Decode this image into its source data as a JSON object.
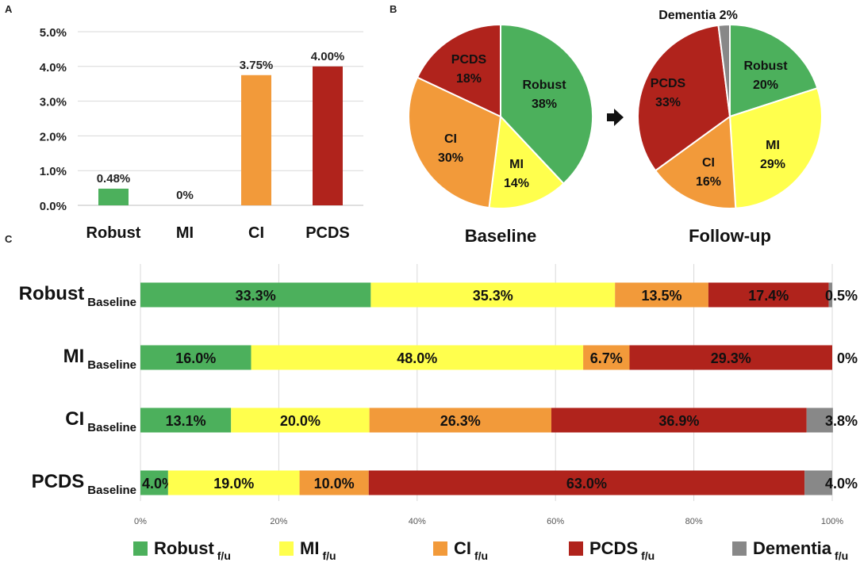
{
  "chart_data": [
    {
      "panel": "A",
      "type": "bar",
      "categories": [
        "Robust",
        "MI",
        "CI",
        "PCDS"
      ],
      "values": [
        0.48,
        0,
        3.75,
        4.0
      ],
      "value_labels": [
        "0.48%",
        "0%",
        "3.75%",
        "4.00%"
      ],
      "colors": [
        "#4cb05c",
        "#ffff4d",
        "#f29a3a",
        "#b0231c"
      ],
      "ylim": [
        0,
        5
      ],
      "yticks": [
        0,
        1,
        2,
        3,
        4,
        5
      ],
      "ytick_labels": [
        "0.0%",
        "1.0%",
        "2.0%",
        "3.0%",
        "4.0%",
        "5.0%"
      ],
      "grid": true
    },
    {
      "panel": "B",
      "type": "pie",
      "pies": [
        {
          "title": "Baseline",
          "slices": [
            {
              "name": "Robust",
              "value": 38,
              "label": "38%",
              "color": "#4cb05c"
            },
            {
              "name": "MI",
              "value": 14,
              "label": "14%",
              "color": "#ffff4d"
            },
            {
              "name": "CI",
              "value": 30,
              "label": "30%",
              "color": "#f29a3a"
            },
            {
              "name": "PCDS",
              "value": 18,
              "label": "18%",
              "color": "#b0231c"
            }
          ]
        },
        {
          "title": "Follow-up",
          "slices": [
            {
              "name": "Robust",
              "value": 20,
              "label": "20%",
              "color": "#4cb05c"
            },
            {
              "name": "MI",
              "value": 29,
              "label": "29%",
              "color": "#ffff4d"
            },
            {
              "name": "CI",
              "value": 16,
              "label": "16%",
              "color": "#f29a3a"
            },
            {
              "name": "PCDS",
              "value": 33,
              "label": "33%",
              "color": "#b0231c"
            },
            {
              "name": "Dementia",
              "value": 2,
              "label": "2%",
              "color": "#888888"
            }
          ]
        }
      ]
    },
    {
      "panel": "C",
      "type": "bar",
      "orientation": "horizontal",
      "stacked": true,
      "categories": [
        "Robust",
        "MI",
        "CI",
        "PCDS"
      ],
      "category_subscript": "Baseline",
      "series": [
        {
          "name": "Robust",
          "values": [
            33.3,
            16.0,
            13.1,
            4.0
          ],
          "labels": [
            "33.3%",
            "16.0%",
            "13.1%",
            "4.0%"
          ],
          "color": "#4cb05c"
        },
        {
          "name": "MI",
          "values": [
            35.3,
            48.0,
            20.0,
            19.0
          ],
          "labels": [
            "35.3%",
            "48.0%",
            "20.0%",
            "19.0%"
          ],
          "color": "#ffff4d"
        },
        {
          "name": "CI",
          "values": [
            13.5,
            6.7,
            26.3,
            10.0
          ],
          "labels": [
            "13.5%",
            "6.7%",
            "26.3%",
            "10.0%"
          ],
          "color": "#f29a3a"
        },
        {
          "name": "PCDS",
          "values": [
            17.4,
            29.3,
            36.9,
            63.0
          ],
          "labels": [
            "17.4%",
            "29.3%",
            "36.9%",
            "63.0%"
          ],
          "color": "#b0231c"
        },
        {
          "name": "Dementia",
          "values": [
            0.5,
            0,
            3.8,
            4.0
          ],
          "labels": [
            "0.5%",
            "0%",
            "3.8%",
            "4.0%"
          ],
          "color": "#888888"
        }
      ],
      "legend_subscript": "f/u",
      "xlim": [
        0,
        100
      ],
      "xticks": [
        0,
        20,
        40,
        60,
        80,
        100
      ],
      "xtick_labels": [
        "0%",
        "20%",
        "40%",
        "60%",
        "80%",
        "100%"
      ],
      "grid": true,
      "legend": "bottom"
    }
  ]
}
